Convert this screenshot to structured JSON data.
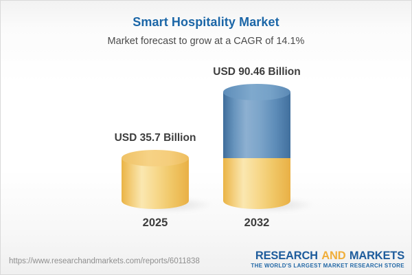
{
  "header": {
    "title": "Smart Hospitality Market",
    "subtitle": "Market forecast to grow at a CAGR of 14.1%"
  },
  "chart_data": {
    "type": "bar",
    "variant": "3d-cylinder",
    "title": "Smart Hospitality Market",
    "subtitle": "Market forecast to grow at a CAGR of 14.1%",
    "unit": "USD Billion",
    "cagr_percent": 14.1,
    "categories": [
      "2025",
      "2032"
    ],
    "values": [
      35.7,
      90.46
    ],
    "xlabel": "",
    "ylabel": "",
    "grid": false,
    "legend": false,
    "bars": [
      {
        "category": "2025",
        "value": 35.7,
        "value_label": "USD 35.7 Billion",
        "segments": [
          {
            "name": "2025-market-size",
            "value": 35.7,
            "palette": "gold"
          }
        ]
      },
      {
        "category": "2032",
        "value": 90.46,
        "value_label": "USD 90.46 Billion",
        "segments": [
          {
            "name": "growth-2025-to-2032",
            "value": 54.76,
            "palette": "blue"
          },
          {
            "name": "2025-base",
            "value": 35.7,
            "palette": "gold"
          }
        ]
      }
    ],
    "colors": {
      "gold_side": "#F2C767",
      "gold_cap": "#F5CE7C",
      "blue_side": "#6E9AC2",
      "blue_cap": "#76A2C8"
    }
  },
  "footer": {
    "url": "https://www.researchandmarkets.com/reports/6011838",
    "logo": {
      "word1": "RESEARCH",
      "word2": "AND",
      "word3": "MARKETS",
      "tagline": "THE WORLD'S LARGEST MARKET RESEARCH STORE"
    }
  },
  "colors": {
    "title_blue": "#1B66A7",
    "text_dark": "#3D3D3D",
    "subtitle_gray": "#4A4A4A",
    "url_gray": "#8E8E8E",
    "logo_blue": "#1E5C9C",
    "logo_gold": "#F0AE3A"
  }
}
